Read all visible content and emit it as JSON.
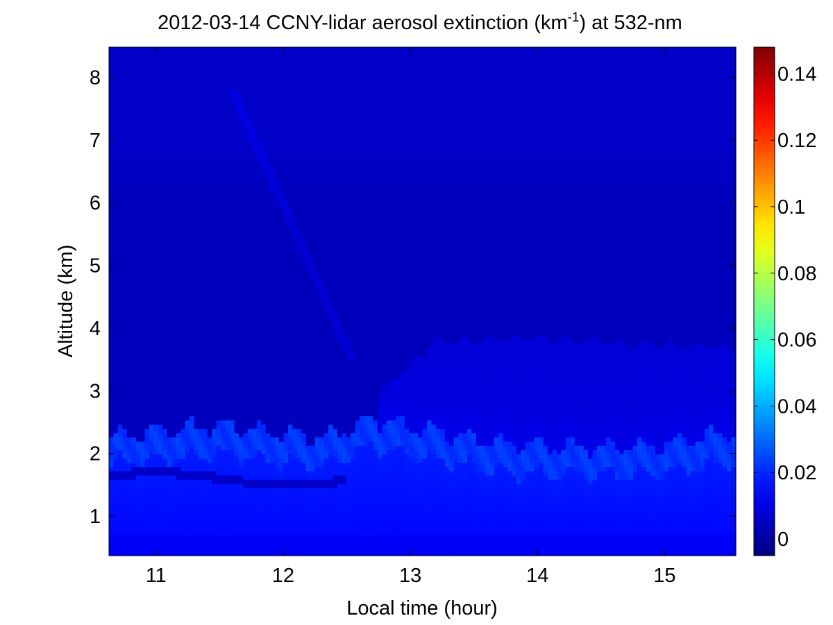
{
  "chart_data": {
    "type": "heatmap",
    "title_main": "2012-03-14 CCNY-lidar aerosol extinction (km",
    "title_sup": "-1",
    "title_tail": ") at 532-nm",
    "xlabel": "Local time (hour)",
    "ylabel": "Altitude (km)",
    "xlim": [
      10.63,
      15.56
    ],
    "ylim": [
      0.37,
      8.48
    ],
    "xticks": [
      11,
      12,
      13,
      14,
      15
    ],
    "yticks": [
      1,
      2,
      3,
      4,
      5,
      6,
      7,
      8
    ],
    "colorbar": {
      "colormap": "jet",
      "clim": [
        -0.005,
        0.148
      ],
      "ticks": [
        0,
        0.02,
        0.04,
        0.06,
        0.08,
        0.1,
        0.12,
        0.14
      ],
      "tick_labels": [
        "0",
        "0.02",
        "0.04",
        "0.06",
        "0.08",
        "0.1",
        "0.12",
        "0.14"
      ]
    },
    "field_description": {
      "boundary_layer_top_km": [
        [
          10.65,
          2.3
        ],
        [
          11.5,
          2.45
        ],
        [
          12.3,
          2.25
        ],
        [
          12.7,
          2.55
        ],
        [
          13.2,
          2.35
        ],
        [
          13.8,
          2.15
        ],
        [
          14.5,
          2.1
        ],
        [
          15.0,
          2.15
        ],
        [
          15.55,
          2.35
        ]
      ],
      "residual_layer_top_km": [
        [
          12.75,
          2.95
        ],
        [
          13.2,
          3.8
        ],
        [
          14.0,
          3.85
        ],
        [
          14.8,
          3.75
        ],
        [
          15.55,
          3.7
        ]
      ],
      "values": {
        "near_surface": 0.013,
        "boundary_layer": 0.018,
        "bl_top_band": 0.022,
        "residual_layer": 0.008,
        "free_troposphere": 0.004,
        "upper_troposphere": 0.006
      }
    }
  }
}
